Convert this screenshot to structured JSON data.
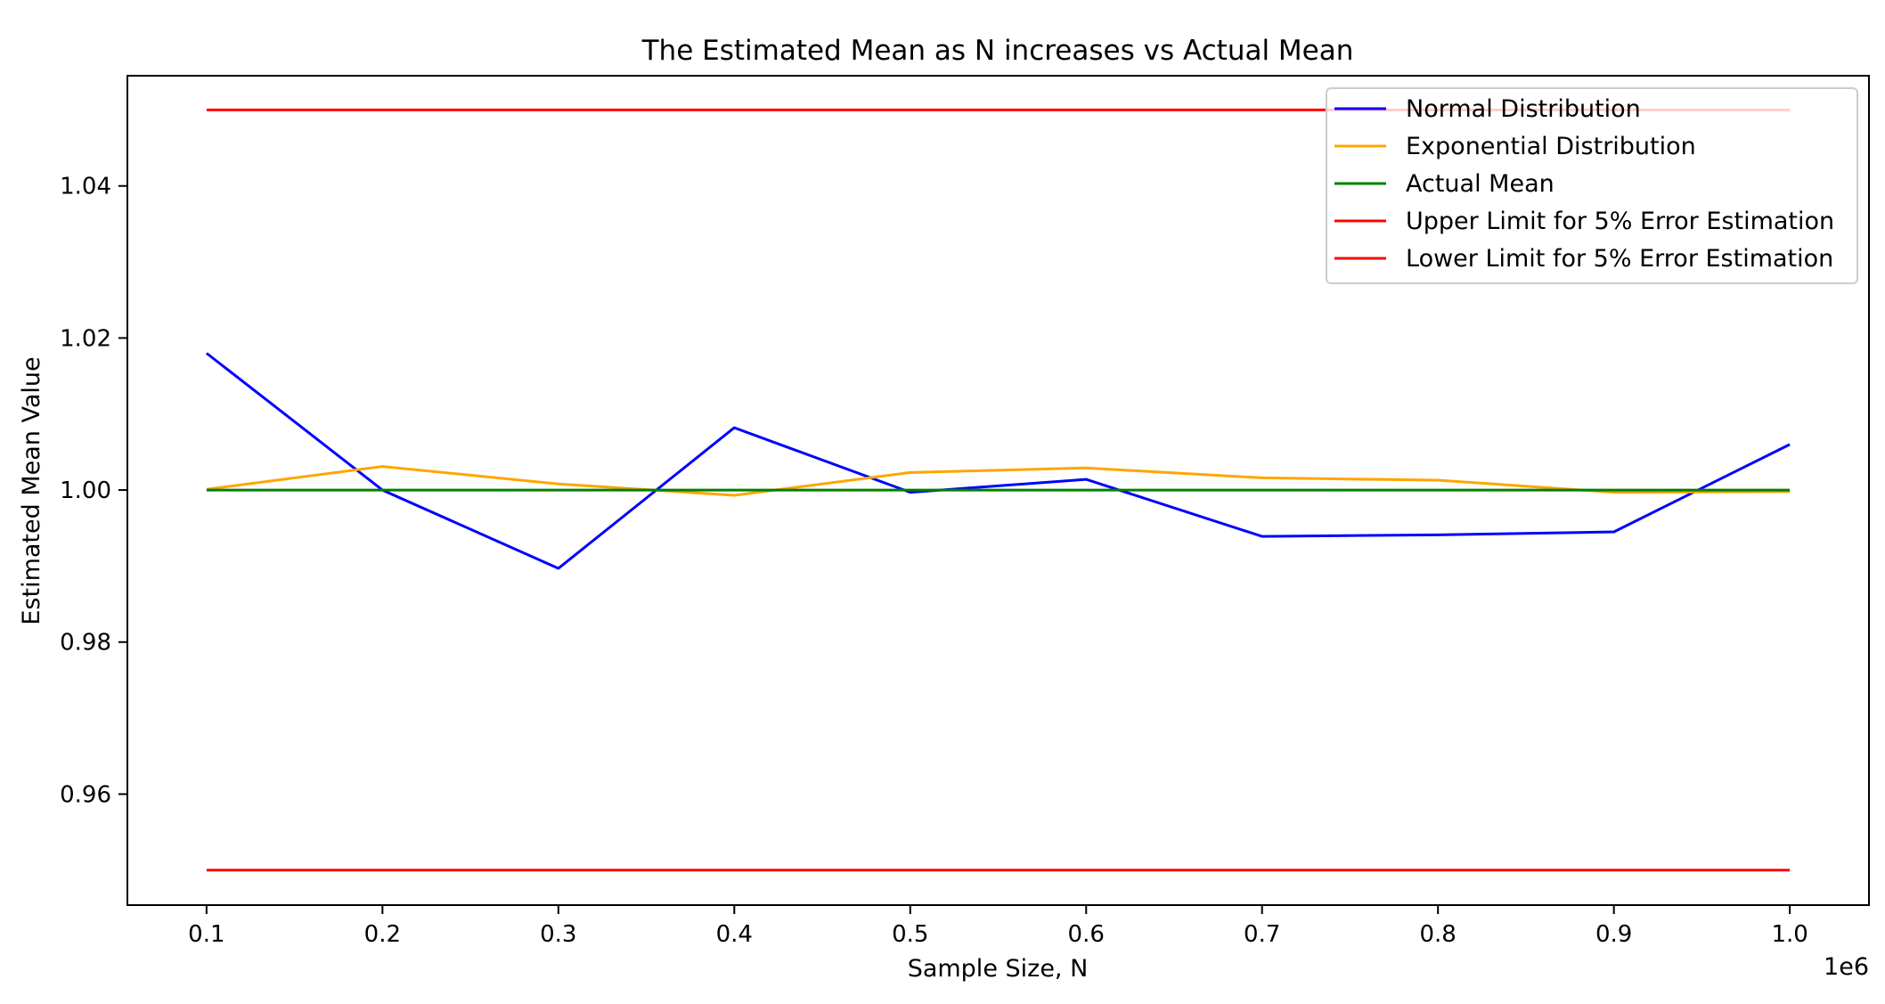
{
  "chart_data": {
    "type": "line",
    "title": "The Estimated Mean as N increases vs Actual Mean",
    "xlabel": "Sample Size, N",
    "ylabel": "Estimated Mean Value",
    "x_offset_label": "1e6",
    "x": [
      100000,
      200000,
      300000,
      400000,
      500000,
      600000,
      700000,
      800000,
      900000,
      1000000
    ],
    "xlim": [
      55000,
      1045000
    ],
    "ylim": [
      0.9454,
      1.0545
    ],
    "x_ticks": [
      100000,
      200000,
      300000,
      400000,
      500000,
      600000,
      700000,
      800000,
      900000,
      1000000
    ],
    "x_tick_labels": [
      "0.1",
      "0.2",
      "0.3",
      "0.4",
      "0.5",
      "0.6",
      "0.7",
      "0.8",
      "0.9",
      "1.0"
    ],
    "y_ticks": [
      0.96,
      0.98,
      1.0,
      1.02,
      1.04
    ],
    "y_tick_labels": [
      "0.96",
      "0.98",
      "1.00",
      "1.02",
      "1.04"
    ],
    "grid": false,
    "legend_position": "top-right",
    "series": [
      {
        "name": "Normal Distribution",
        "color": "#0000ff",
        "values": [
          1.018,
          1.0,
          0.9897,
          1.0082,
          0.9997,
          1.0014,
          0.9939,
          0.9941,
          0.9945,
          1.006
        ]
      },
      {
        "name": "Exponential Distribution",
        "color": "#ffa500",
        "values": [
          1.0001,
          1.0031,
          1.0008,
          0.9993,
          1.0023,
          1.0029,
          1.0016,
          1.0013,
          0.9997,
          0.9998
        ]
      },
      {
        "name": "Actual Mean",
        "color": "#008000",
        "values": [
          1.0,
          1.0,
          1.0,
          1.0,
          1.0,
          1.0,
          1.0,
          1.0,
          1.0,
          1.0
        ]
      },
      {
        "name": "Upper Limit for 5% Error Estimation",
        "color": "#ff0000",
        "values": [
          1.05,
          1.05,
          1.05,
          1.05,
          1.05,
          1.05,
          1.05,
          1.05,
          1.05,
          1.05
        ]
      },
      {
        "name": "Lower Limit for 5% Error Estimation",
        "color": "#ff0000",
        "values": [
          0.95,
          0.95,
          0.95,
          0.95,
          0.95,
          0.95,
          0.95,
          0.95,
          0.95,
          0.95
        ]
      }
    ]
  }
}
